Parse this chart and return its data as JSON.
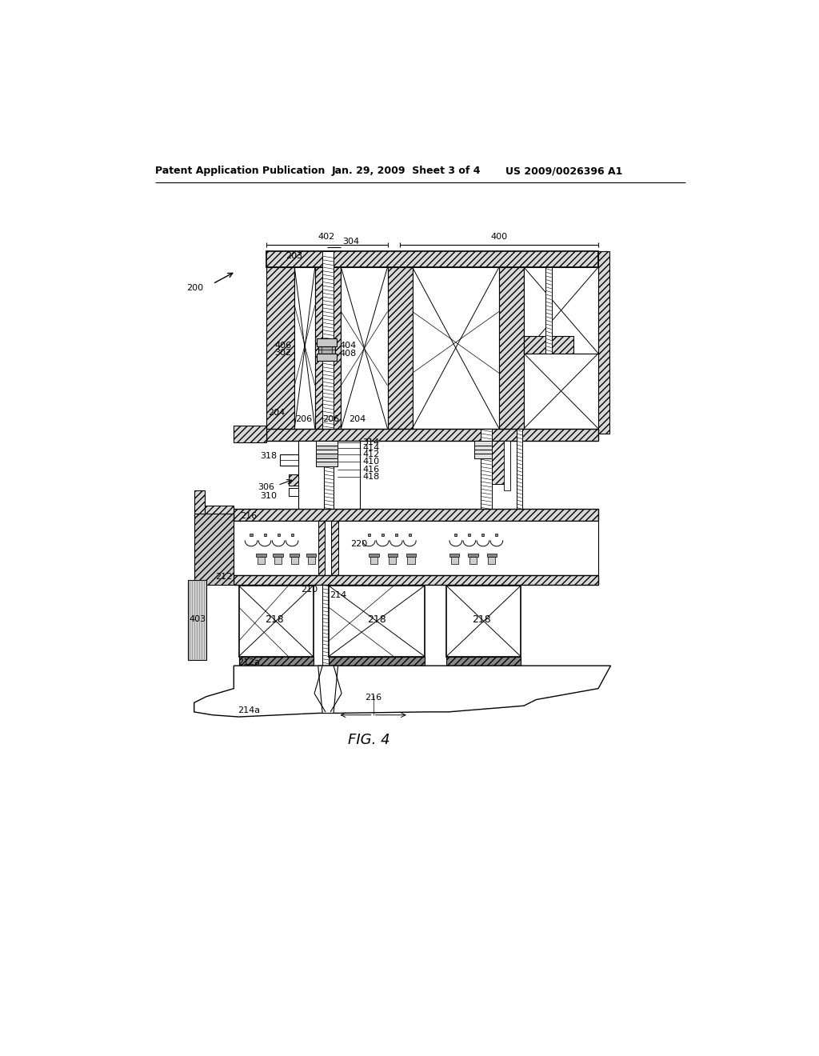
{
  "header_left": "Patent Application Publication",
  "header_mid": "Jan. 29, 2009  Sheet 3 of 4",
  "header_right": "US 2009/0026396 A1",
  "fig_caption": "FIG. 4",
  "bg_color": "#ffffff"
}
